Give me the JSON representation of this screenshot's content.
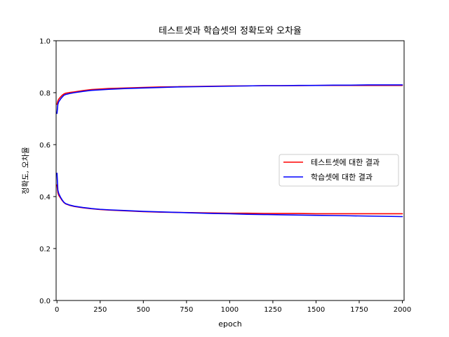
{
  "chart_data": {
    "type": "line",
    "title": "테스트셋과 학습셋의 정확도와 오차율",
    "xlabel": "epoch",
    "ylabel": "정확도, 오차율",
    "xlim": [
      -5,
      2010
    ],
    "ylim": [
      0.0,
      1.0
    ],
    "xticks": [
      0,
      250,
      500,
      750,
      1000,
      1250,
      1500,
      1750,
      2000
    ],
    "yticks": [
      0.0,
      0.2,
      0.4,
      0.6,
      0.8,
      1.0
    ],
    "grid": false,
    "legend_position": "center-right",
    "colors": {
      "test": "#ff0000",
      "train": "#0000ff"
    },
    "series": [
      {
        "name": "테스트셋에 대한 결과",
        "metric": "accuracy",
        "color": "#ff0000",
        "x": [
          0,
          5,
          10,
          20,
          30,
          40,
          50,
          75,
          100,
          150,
          200,
          250,
          300,
          400,
          500,
          600,
          700,
          800,
          900,
          1000,
          1100,
          1200,
          1300,
          1400,
          1500,
          1600,
          1700,
          1800,
          1900,
          2000
        ],
        "y": [
          0.755,
          0.768,
          0.775,
          0.783,
          0.79,
          0.795,
          0.798,
          0.801,
          0.803,
          0.808,
          0.812,
          0.814,
          0.816,
          0.818,
          0.82,
          0.822,
          0.823,
          0.824,
          0.825,
          0.826,
          0.826,
          0.827,
          0.827,
          0.827,
          0.828,
          0.828,
          0.828,
          0.828,
          0.828,
          0.828
        ]
      },
      {
        "name": "테스트셋에 대한 결과",
        "metric": "loss",
        "color": "#ff0000",
        "x": [
          0,
          5,
          10,
          20,
          30,
          40,
          50,
          75,
          100,
          150,
          200,
          250,
          300,
          400,
          500,
          600,
          700,
          800,
          900,
          1000,
          1100,
          1200,
          1300,
          1400,
          1500,
          1600,
          1700,
          1800,
          1900,
          2000
        ],
        "y": [
          0.445,
          0.415,
          0.405,
          0.395,
          0.385,
          0.377,
          0.372,
          0.366,
          0.362,
          0.357,
          0.353,
          0.35,
          0.348,
          0.345,
          0.342,
          0.34,
          0.339,
          0.338,
          0.337,
          0.336,
          0.336,
          0.335,
          0.335,
          0.335,
          0.334,
          0.334,
          0.334,
          0.334,
          0.334,
          0.334
        ]
      },
      {
        "name": "학습셋에 대한 결과",
        "metric": "accuracy",
        "color": "#0000ff",
        "x": [
          0,
          5,
          10,
          20,
          30,
          40,
          50,
          75,
          100,
          150,
          200,
          250,
          300,
          400,
          500,
          600,
          700,
          800,
          900,
          1000,
          1100,
          1200,
          1300,
          1400,
          1500,
          1600,
          1700,
          1800,
          1900,
          2000
        ],
        "y": [
          0.72,
          0.755,
          0.765,
          0.775,
          0.783,
          0.79,
          0.793,
          0.797,
          0.8,
          0.805,
          0.809,
          0.811,
          0.813,
          0.816,
          0.818,
          0.82,
          0.822,
          0.823,
          0.824,
          0.825,
          0.826,
          0.827,
          0.827,
          0.828,
          0.828,
          0.829,
          0.829,
          0.83,
          0.83,
          0.83
        ]
      },
      {
        "name": "학습셋에 대한 결과",
        "metric": "loss",
        "color": "#0000ff",
        "x": [
          0,
          5,
          10,
          20,
          30,
          40,
          50,
          75,
          100,
          150,
          200,
          250,
          300,
          400,
          500,
          600,
          700,
          800,
          900,
          1000,
          1100,
          1200,
          1300,
          1400,
          1500,
          1600,
          1700,
          1800,
          1900,
          2000
        ],
        "y": [
          0.49,
          0.425,
          0.412,
          0.398,
          0.387,
          0.378,
          0.373,
          0.367,
          0.363,
          0.358,
          0.354,
          0.351,
          0.349,
          0.346,
          0.343,
          0.341,
          0.339,
          0.337,
          0.335,
          0.334,
          0.332,
          0.331,
          0.33,
          0.329,
          0.328,
          0.327,
          0.326,
          0.325,
          0.324,
          0.323
        ]
      }
    ],
    "legend": [
      {
        "label": "테스트셋에 대한 결과",
        "color": "#ff0000"
      },
      {
        "label": "학습셋에 대한 결과",
        "color": "#0000ff"
      }
    ]
  }
}
